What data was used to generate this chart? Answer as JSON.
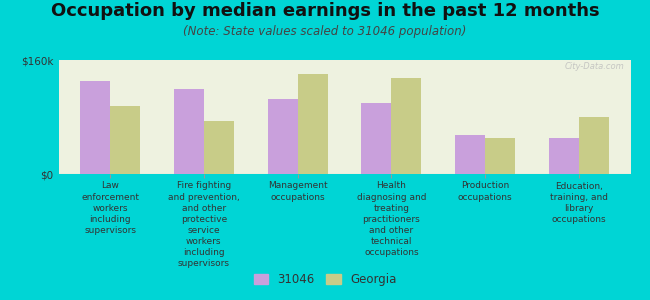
{
  "title": "Occupation by median earnings in the past 12 months",
  "subtitle": "(Note: State values scaled to 31046 population)",
  "background_color": "#00d5d5",
  "plot_bg_color": "#eef2e0",
  "categories": [
    "Law\nenforcement\nworkers\nincluding\nsupervisors",
    "Fire fighting\nand prevention,\nand other\nprotective\nservice\nworkers\nincluding\nsupervisors",
    "Management\noccupations",
    "Health\ndiagnosing and\ntreating\npractitioners\nand other\ntechnical\noccupations",
    "Production\noccupations",
    "Education,\ntraining, and\nlibrary\noccupations"
  ],
  "values_31046": [
    130000,
    120000,
    105000,
    100000,
    55000,
    50000
  ],
  "values_georgia": [
    95000,
    75000,
    140000,
    135000,
    50000,
    80000
  ],
  "ylim": [
    0,
    160000
  ],
  "ytick_labels": [
    "$0",
    "$160k"
  ],
  "color_31046": "#c9a0dc",
  "color_georgia": "#c8cc88",
  "legend_31046": "31046",
  "legend_georgia": "Georgia",
  "bar_width": 0.32,
  "title_fontsize": 13,
  "subtitle_fontsize": 8.5,
  "label_fontsize": 6.5,
  "watermark": "City-Data.com"
}
